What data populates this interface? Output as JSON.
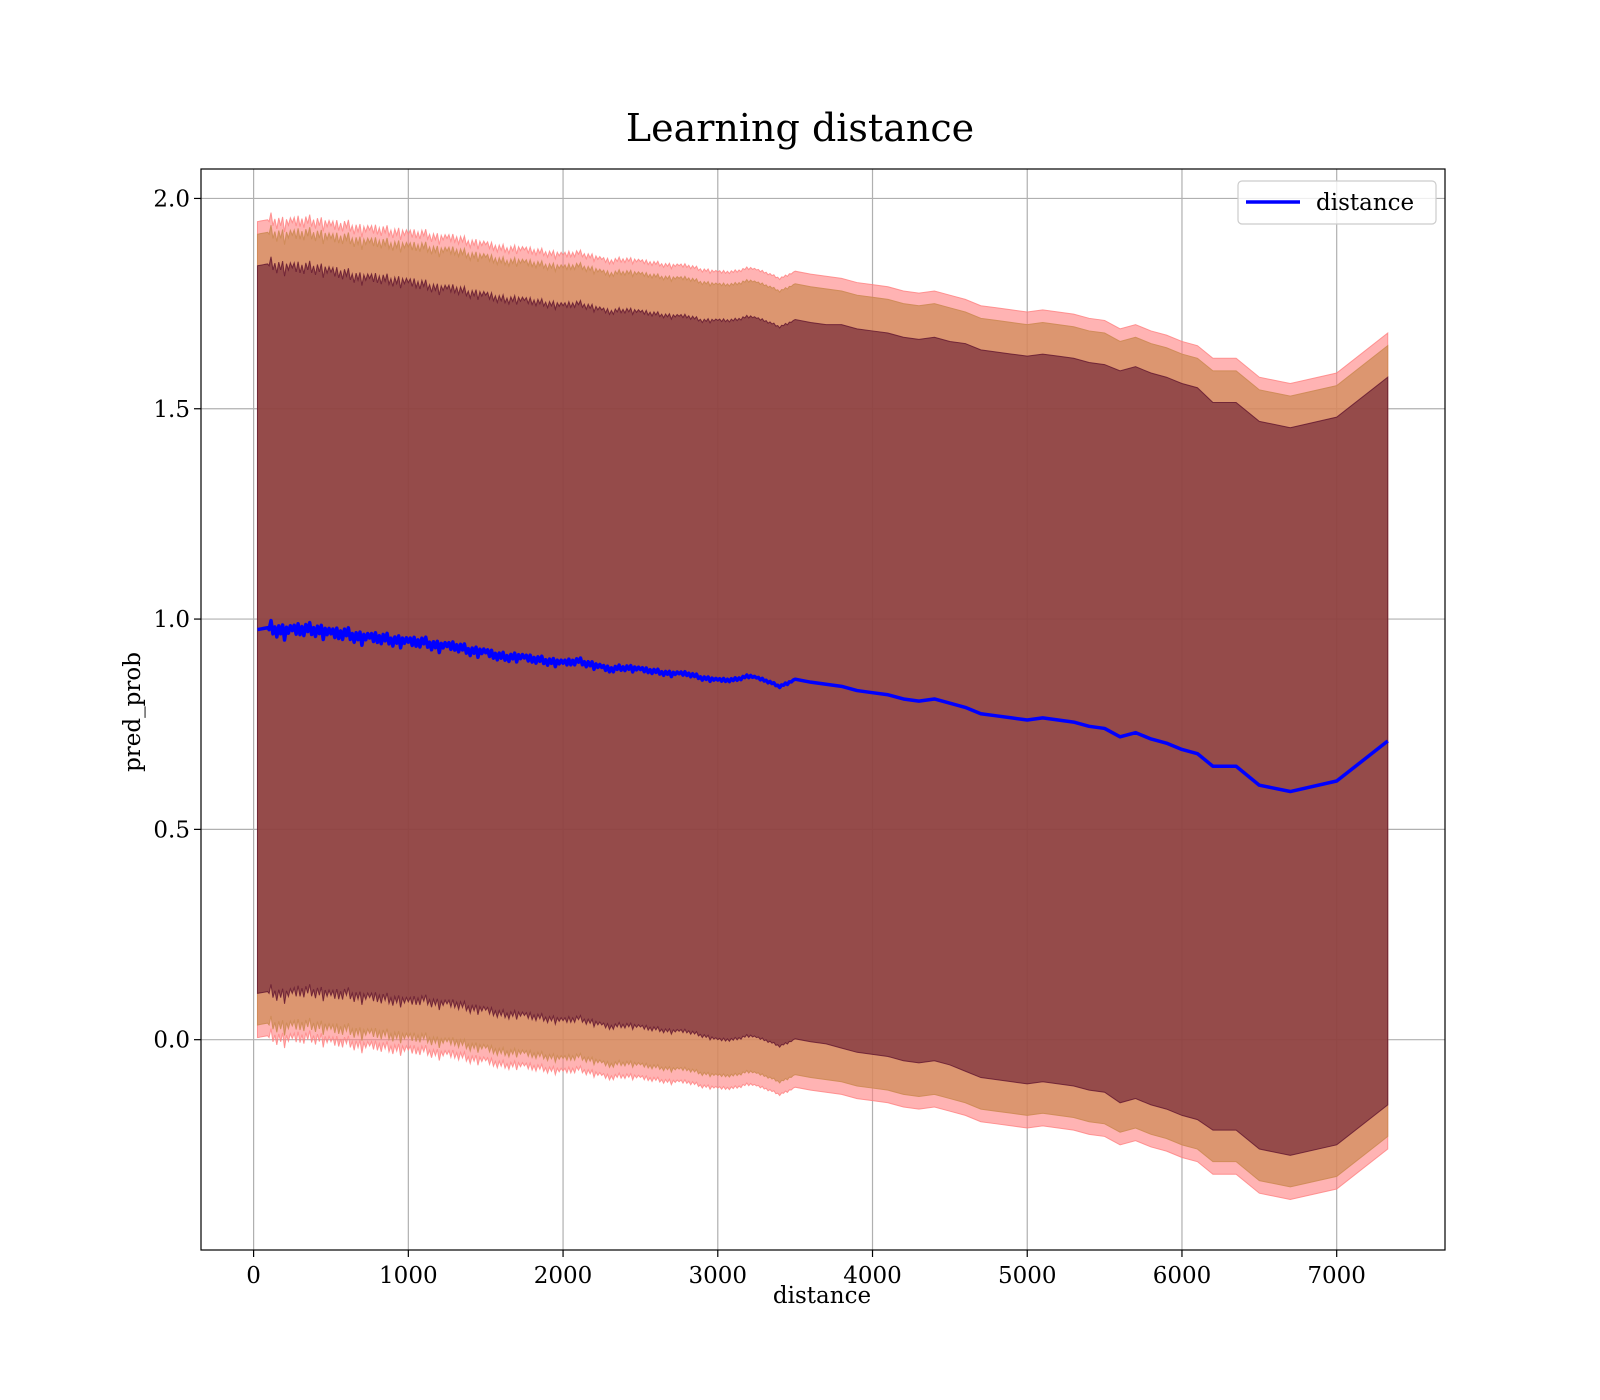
{
  "chart_data": {
    "type": "line",
    "title": "Learning distance",
    "xlabel": "distance",
    "ylabel": "pred_prob",
    "xlim": [
      -340,
      7700
    ],
    "ylim": [
      -0.5,
      2.07
    ],
    "xticks": [
      0,
      1000,
      2000,
      3000,
      4000,
      5000,
      6000,
      7000
    ],
    "xtick_labels": [
      "0",
      "1000",
      "2000",
      "3000",
      "4000",
      "5000",
      "6000",
      "7000"
    ],
    "yticks": [
      0.0,
      0.5,
      1.0,
      1.5,
      2.0
    ],
    "ytick_labels": [
      "0.0",
      "0.5",
      "1.0",
      "1.5",
      "2.0"
    ],
    "grid": true,
    "legend": {
      "placement": "top-right",
      "entries": [
        "distance"
      ]
    },
    "series": [
      {
        "name": "distance",
        "color": "#0000ff",
        "x": [
          25,
          100,
          200,
          300,
          400,
          500,
          600,
          700,
          800,
          900,
          1000,
          1100,
          1200,
          1300,
          1400,
          1500,
          1600,
          1700,
          1800,
          1900,
          2000,
          2100,
          2200,
          2300,
          2400,
          2500,
          2600,
          2700,
          2800,
          2900,
          3000,
          3100,
          3200,
          3300,
          3400,
          3500,
          3600,
          3700,
          3800,
          3900,
          4000,
          4100,
          4200,
          4300,
          4400,
          4500,
          4600,
          4700,
          4800,
          4900,
          5000,
          5100,
          5200,
          5300,
          5400,
          5500,
          5600,
          5700,
          5800,
          5900,
          6000,
          6100,
          6200,
          6350,
          6500,
          6700,
          7000,
          7330
        ],
        "y": [
          0.975,
          0.98,
          0.97,
          0.975,
          0.975,
          0.965,
          0.965,
          0.955,
          0.955,
          0.95,
          0.945,
          0.945,
          0.935,
          0.935,
          0.925,
          0.92,
          0.91,
          0.91,
          0.905,
          0.9,
          0.895,
          0.9,
          0.89,
          0.88,
          0.885,
          0.88,
          0.875,
          0.87,
          0.87,
          0.86,
          0.855,
          0.855,
          0.865,
          0.855,
          0.84,
          0.855,
          0.85,
          0.845,
          0.84,
          0.83,
          0.825,
          0.82,
          0.81,
          0.805,
          0.81,
          0.8,
          0.79,
          0.775,
          0.77,
          0.765,
          0.76,
          0.765,
          0.76,
          0.755,
          0.745,
          0.74,
          0.72,
          0.73,
          0.715,
          0.705,
          0.69,
          0.68,
          0.65,
          0.65,
          0.605,
          0.59,
          0.615,
          0.71
        ],
        "noise_pattern": [
          0,
          0.01,
          -0.008,
          0.012,
          -0.01,
          0.006,
          -0.012,
          0.01,
          -0.004,
          0.014,
          -0.01,
          0.004,
          -0.014,
          0.008,
          -0.006,
          0.012,
          -0.016,
          0.008,
          -0.004,
          0.01
        ],
        "noise_end_x": 3500,
        "bands": [
          {
            "label": "inner",
            "color": "#5b0f2c",
            "opacity": 0.55,
            "halfwidth": [
              0.865,
              0.865,
              0.865,
              0.86,
              0.86,
              0.86,
              0.855,
              0.855,
              0.855,
              0.855,
              0.855,
              0.85,
              0.85,
              0.85,
              0.85,
              0.85,
              0.85,
              0.85,
              0.85,
              0.85,
              0.85,
              0.85,
              0.85,
              0.85,
              0.85,
              0.85,
              0.85,
              0.85,
              0.85,
              0.85,
              0.855,
              0.855,
              0.855,
              0.855,
              0.855,
              0.855,
              0.855,
              0.855,
              0.86,
              0.86,
              0.86,
              0.86,
              0.86,
              0.86,
              0.86,
              0.86,
              0.865,
              0.865,
              0.865,
              0.865,
              0.865,
              0.865,
              0.865,
              0.865,
              0.865,
              0.865,
              0.87,
              0.87,
              0.87,
              0.87,
              0.87,
              0.87,
              0.865,
              0.865,
              0.865,
              0.865,
              0.865,
              0.865
            ]
          },
          {
            "label": "middle",
            "color": "#cd8a54",
            "opacity": 0.7,
            "halfwidth": [
              0.94,
              0.94,
              0.94,
              0.94,
              0.94,
              0.94,
              0.94,
              0.94,
              0.94,
              0.94,
              0.94,
              0.94,
              0.94,
              0.94,
              0.94,
              0.94,
              0.94,
              0.94,
              0.94,
              0.94,
              0.94,
              0.94,
              0.94,
              0.94,
              0.94,
              0.94,
              0.94,
              0.94,
              0.94,
              0.94,
              0.94,
              0.94,
              0.94,
              0.94,
              0.94,
              0.94,
              0.94,
              0.94,
              0.94,
              0.94,
              0.94,
              0.94,
              0.94,
              0.94,
              0.94,
              0.94,
              0.94,
              0.94,
              0.94,
              0.94,
              0.94,
              0.94,
              0.94,
              0.94,
              0.94,
              0.94,
              0.94,
              0.94,
              0.94,
              0.94,
              0.94,
              0.94,
              0.94,
              0.94,
              0.94,
              0.94,
              0.94,
              0.94
            ]
          },
          {
            "label": "outer",
            "color": "#ff8080",
            "opacity": 0.6,
            "halfwidth": [
              0.97,
              0.97,
              0.97,
              0.97,
              0.97,
              0.97,
              0.97,
              0.97,
              0.97,
              0.97,
              0.97,
              0.97,
              0.97,
              0.97,
              0.97,
              0.97,
              0.97,
              0.97,
              0.97,
              0.97,
              0.97,
              0.97,
              0.97,
              0.97,
              0.97,
              0.97,
              0.97,
              0.97,
              0.97,
              0.97,
              0.97,
              0.97,
              0.97,
              0.97,
              0.97,
              0.97,
              0.97,
              0.97,
              0.97,
              0.97,
              0.97,
              0.97,
              0.97,
              0.97,
              0.97,
              0.97,
              0.97,
              0.97,
              0.97,
              0.97,
              0.97,
              0.97,
              0.97,
              0.97,
              0.97,
              0.97,
              0.97,
              0.97,
              0.97,
              0.97,
              0.97,
              0.97,
              0.97,
              0.97,
              0.97,
              0.97,
              0.97,
              0.97
            ]
          }
        ]
      }
    ]
  }
}
